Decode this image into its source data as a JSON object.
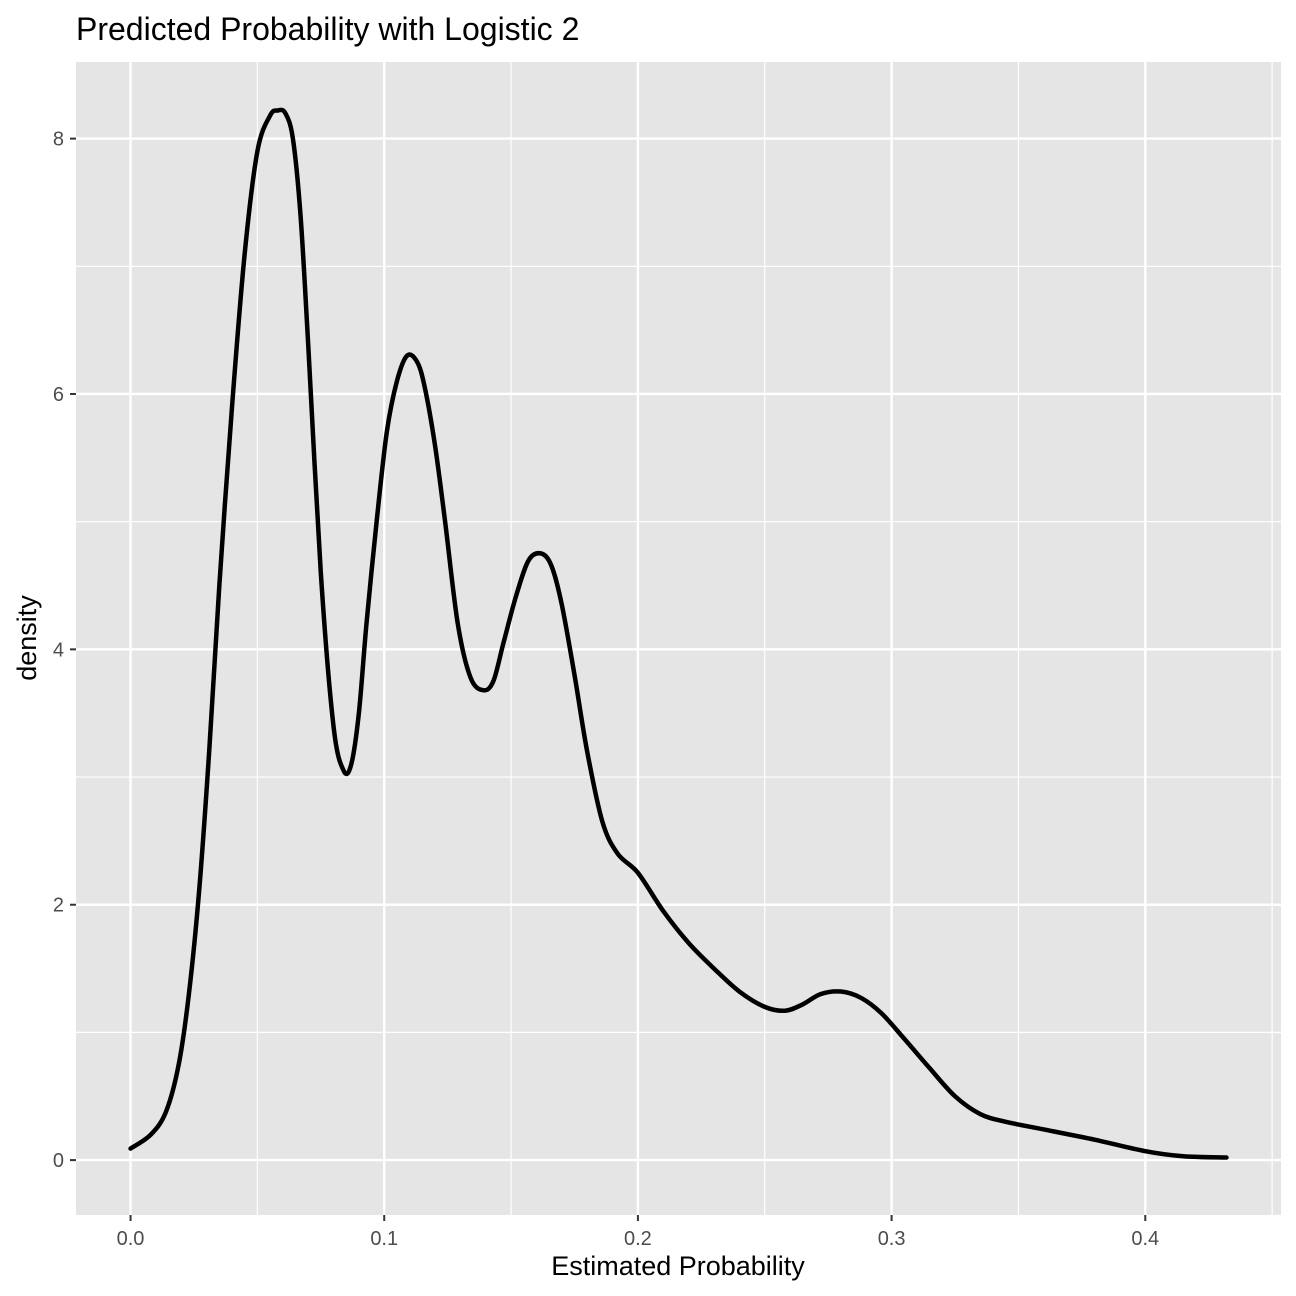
{
  "chart_data": {
    "type": "line",
    "title": "Predicted Probability with Logistic 2",
    "xlabel": "Estimated Probability",
    "ylabel": "density",
    "xlim": [
      -0.0215,
      0.4535
    ],
    "ylim": [
      -0.43,
      8.6
    ],
    "x_ticks": [
      0.0,
      0.1,
      0.2,
      0.3,
      0.4
    ],
    "x_tick_labels": [
      "0.0",
      "0.1",
      "0.2",
      "0.3",
      "0.4"
    ],
    "y_ticks": [
      0,
      2,
      4,
      6,
      8
    ],
    "y_tick_labels": [
      "0",
      "2",
      "4",
      "6",
      "8"
    ],
    "grid": true,
    "background": "#e5e5e5",
    "grid_color": "#ffffff",
    "line_color": "#000000",
    "series": [
      {
        "x": [
          0.0,
          0.008,
          0.014,
          0.019,
          0.023,
          0.027,
          0.031,
          0.035,
          0.04,
          0.045,
          0.05,
          0.055,
          0.058,
          0.061,
          0.064,
          0.067,
          0.07,
          0.075,
          0.08,
          0.084,
          0.087,
          0.09,
          0.093,
          0.097,
          0.101,
          0.105,
          0.109,
          0.113,
          0.116,
          0.12,
          0.124,
          0.129,
          0.134,
          0.139,
          0.143,
          0.147,
          0.152,
          0.157,
          0.162,
          0.166,
          0.17,
          0.175,
          0.18,
          0.186,
          0.192,
          0.2,
          0.21,
          0.22,
          0.23,
          0.24,
          0.25,
          0.258,
          0.265,
          0.272,
          0.28,
          0.288,
          0.296,
          0.305,
          0.315,
          0.325,
          0.335,
          0.345,
          0.36,
          0.38,
          0.4,
          0.415,
          0.432
        ],
        "y": [
          0.09,
          0.2,
          0.38,
          0.75,
          1.3,
          2.1,
          3.2,
          4.5,
          5.9,
          7.1,
          7.9,
          8.18,
          8.22,
          8.2,
          8.0,
          7.4,
          6.4,
          4.6,
          3.4,
          3.05,
          3.1,
          3.5,
          4.2,
          5.0,
          5.7,
          6.1,
          6.3,
          6.25,
          6.05,
          5.6,
          5.0,
          4.2,
          3.78,
          3.68,
          3.75,
          4.05,
          4.42,
          4.7,
          4.75,
          4.65,
          4.35,
          3.8,
          3.2,
          2.65,
          2.4,
          2.25,
          1.95,
          1.7,
          1.5,
          1.32,
          1.2,
          1.17,
          1.22,
          1.3,
          1.32,
          1.27,
          1.15,
          0.95,
          0.72,
          0.5,
          0.36,
          0.3,
          0.24,
          0.16,
          0.07,
          0.03,
          0.02
        ]
      }
    ]
  }
}
